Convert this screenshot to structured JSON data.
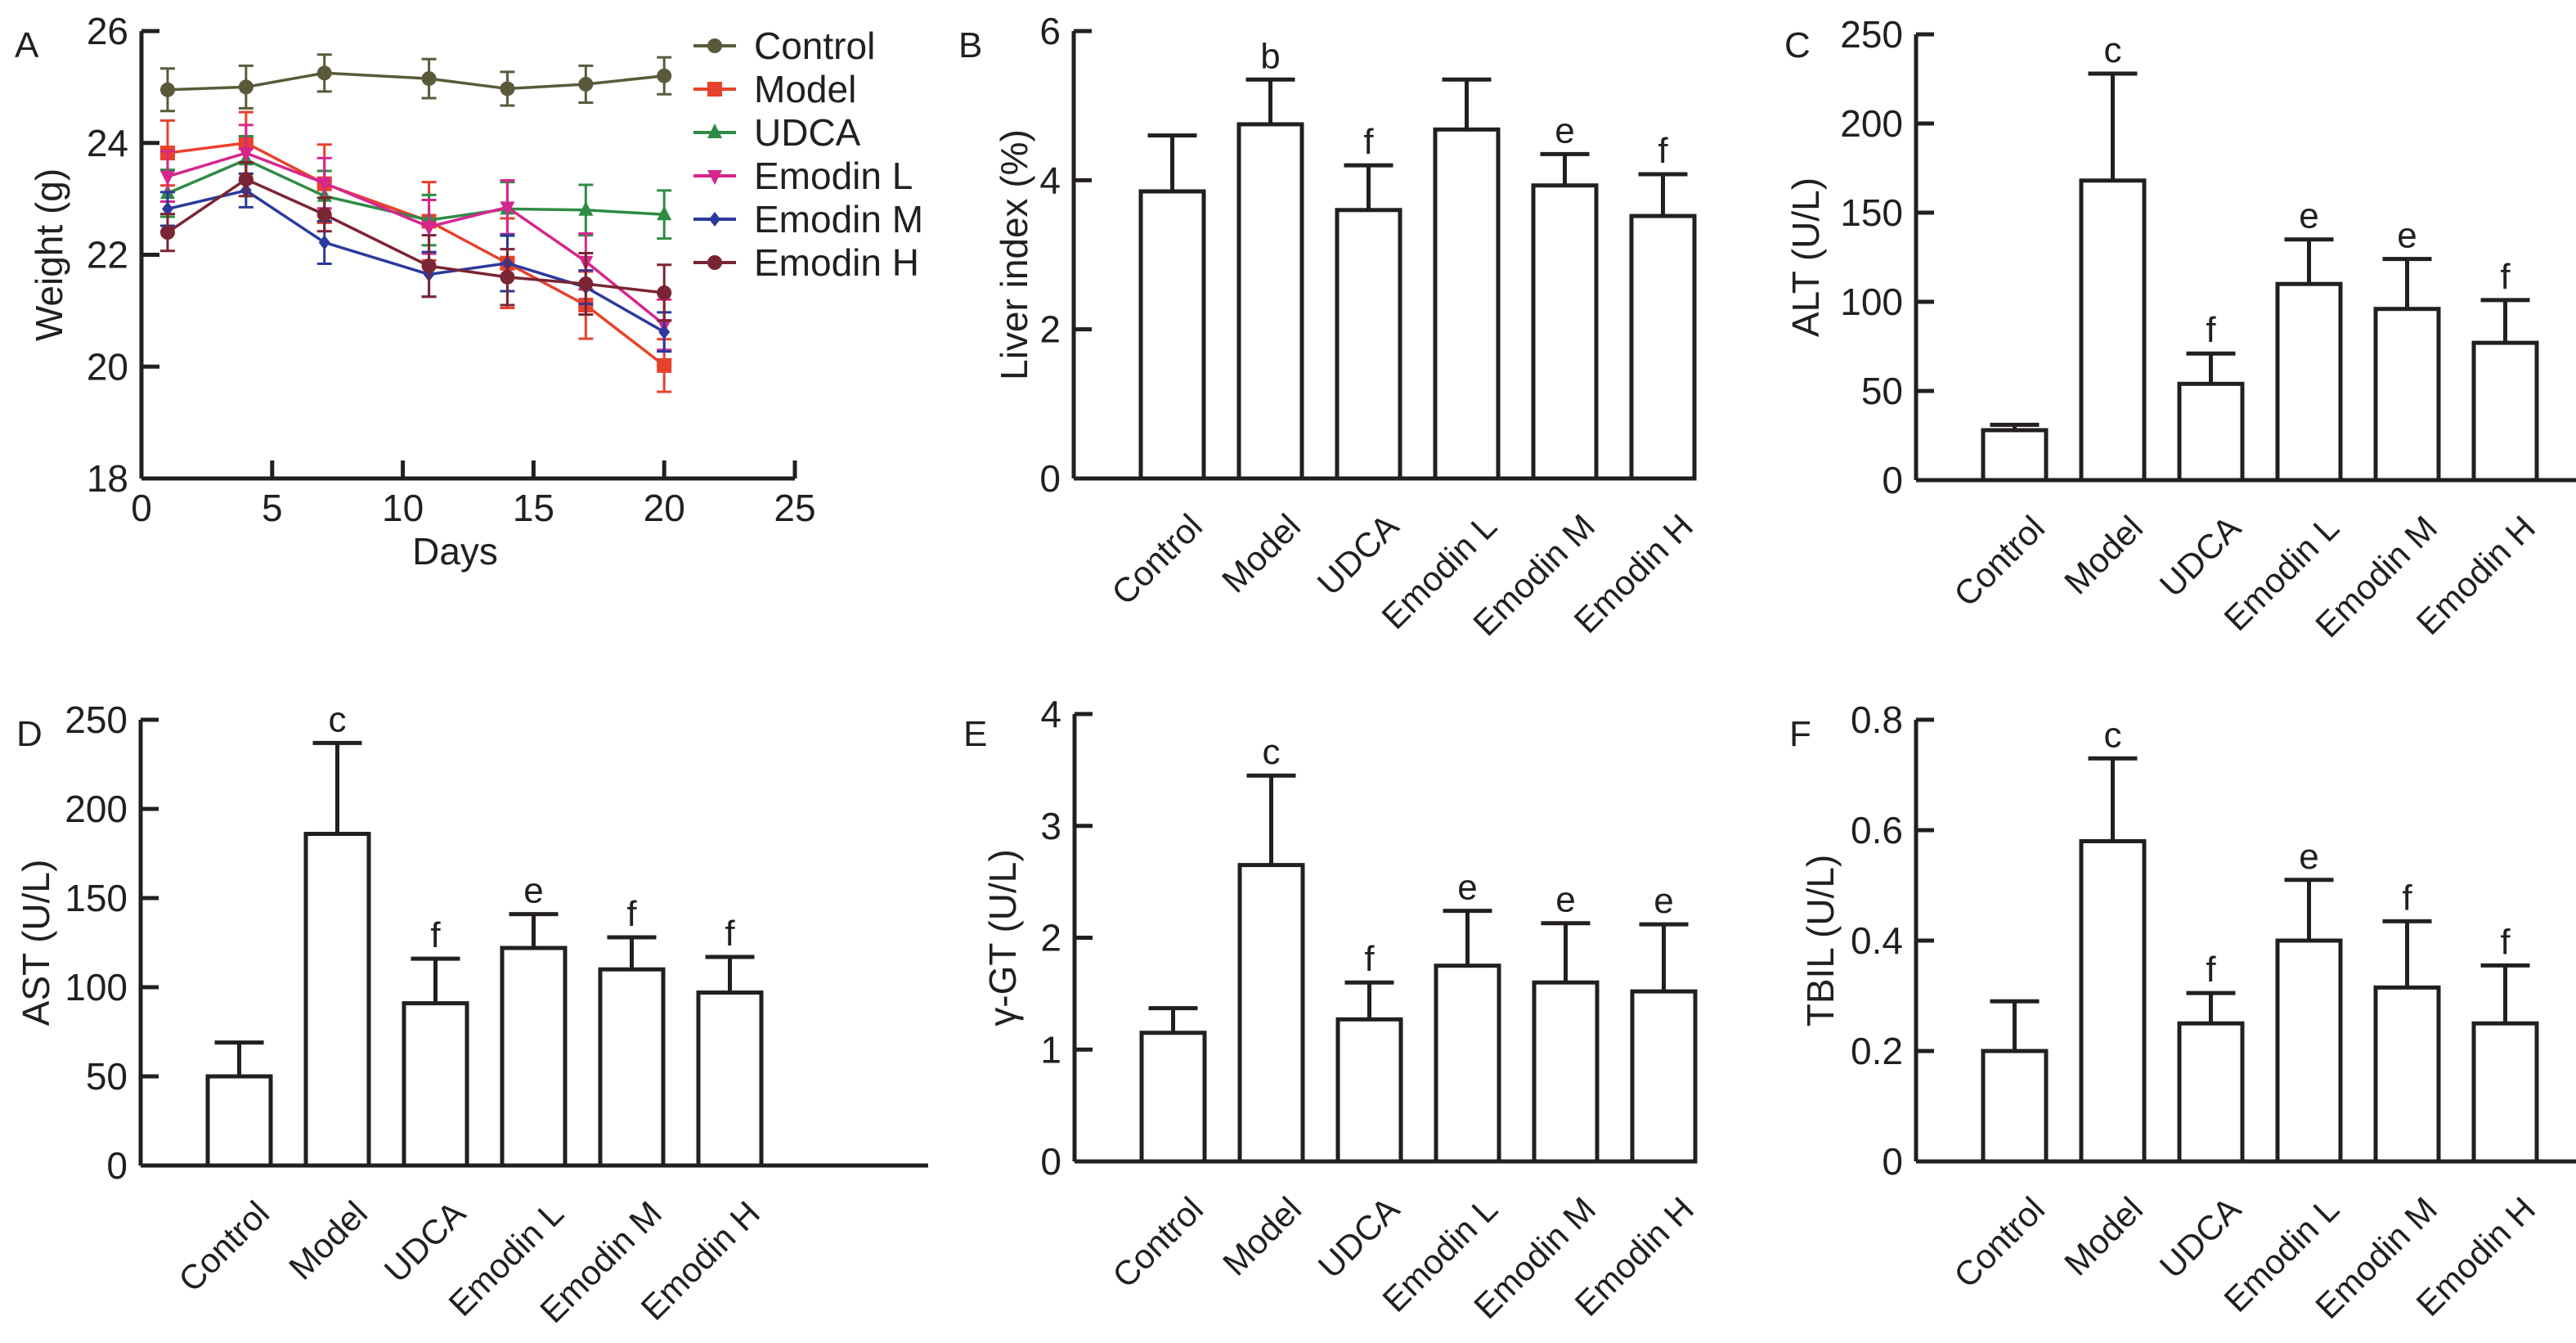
{
  "figure": {
    "panel_letters": [
      "A",
      "B",
      "C",
      "D",
      "E",
      "F"
    ]
  },
  "chart_data": [
    {
      "panel": "A",
      "type": "line",
      "title": "",
      "xlabel": "Days",
      "ylabel": "Weight (g)",
      "xlim": [
        0,
        25
      ],
      "ylim": [
        18,
        26
      ],
      "xticks": [
        0,
        5,
        10,
        15,
        20,
        25
      ],
      "yticks": [
        18,
        20,
        22,
        24,
        26
      ],
      "grid": false,
      "legend_position": "top-right",
      "x": [
        1,
        4,
        7,
        11,
        14,
        17,
        20
      ],
      "series": [
        {
          "name": "Control",
          "color": "#5a5a3a",
          "marker": "circle",
          "values": [
            24.95,
            25.0,
            25.25,
            25.15,
            24.97,
            25.05,
            25.2
          ],
          "errors": [
            0.38,
            0.38,
            0.33,
            0.35,
            0.3,
            0.33,
            0.33
          ]
        },
        {
          "name": "Model",
          "color": "#e8412b",
          "marker": "square",
          "values": [
            23.82,
            24.0,
            23.27,
            22.6,
            21.85,
            21.1,
            20.02
          ],
          "errors": [
            0.58,
            0.55,
            0.7,
            0.7,
            0.8,
            0.6,
            0.47
          ]
        },
        {
          "name": "UDCA",
          "color": "#2e8b45",
          "marker": "triangle-up",
          "values": [
            23.1,
            23.7,
            23.05,
            22.62,
            22.82,
            22.8,
            22.72
          ],
          "errors": [
            0.42,
            0.42,
            0.45,
            0.45,
            0.48,
            0.45,
            0.43
          ]
        },
        {
          "name": "Emodin L",
          "color": "#d6268e",
          "marker": "triangle-down",
          "values": [
            23.4,
            23.82,
            23.28,
            22.5,
            22.85,
            21.88,
            20.75
          ],
          "errors": [
            0.45,
            0.5,
            0.45,
            0.48,
            0.48,
            0.5,
            0.45
          ]
        },
        {
          "name": "Emodin M",
          "color": "#2b3a9c",
          "marker": "diamond",
          "values": [
            22.82,
            23.15,
            22.22,
            21.65,
            21.85,
            21.42,
            20.62
          ],
          "errors": [
            0.3,
            0.3,
            0.38,
            0.4,
            0.5,
            0.3,
            0.35
          ]
        },
        {
          "name": "Emodin H",
          "color": "#7a2533",
          "marker": "circle",
          "values": [
            22.4,
            23.35,
            22.72,
            21.8,
            21.6,
            21.48,
            21.32
          ],
          "errors": [
            0.33,
            0.3,
            0.3,
            0.55,
            0.5,
            0.55,
            0.5
          ]
        }
      ]
    },
    {
      "panel": "B",
      "type": "bar",
      "title": "",
      "xlabel": "",
      "ylabel": "Liver index (%)",
      "ylim": [
        0,
        6
      ],
      "yticks": [
        0,
        2,
        4,
        6
      ],
      "grid": false,
      "categories": [
        "Control",
        "Model",
        "UDCA",
        "Emodin L",
        "Emodin M",
        "Emodin H"
      ],
      "values": [
        3.85,
        4.75,
        3.6,
        4.68,
        3.93,
        3.52
      ],
      "error_upper": [
        4.6,
        5.35,
        4.2,
        5.35,
        4.35,
        4.08
      ],
      "annotations": [
        "",
        "b",
        "f",
        "",
        "e",
        "f"
      ]
    },
    {
      "panel": "C",
      "type": "bar",
      "title": "",
      "xlabel": "",
      "ylabel": "ALT (U/L)",
      "ylim": [
        0,
        250
      ],
      "yticks": [
        0,
        50,
        100,
        150,
        200,
        250
      ],
      "grid": false,
      "categories": [
        "Control",
        "Model",
        "UDCA",
        "Emodin L",
        "Emodin M",
        "Emodin H"
      ],
      "values": [
        28,
        168,
        54,
        110,
        96,
        77
      ],
      "error_upper": [
        31,
        228,
        71,
        135,
        124,
        101
      ],
      "annotations": [
        "",
        "c",
        "f",
        "e",
        "e",
        "f"
      ]
    },
    {
      "panel": "D",
      "type": "bar",
      "title": "",
      "xlabel": "",
      "ylabel": "AST (U/L)",
      "ylim": [
        0,
        250
      ],
      "yticks": [
        0,
        50,
        100,
        150,
        200,
        250
      ],
      "grid": false,
      "categories": [
        "Control",
        "Model",
        "UDCA",
        "Emodin L",
        "Emodin M",
        "Emodin H"
      ],
      "values": [
        50,
        186,
        91,
        122,
        110,
        97
      ],
      "error_upper": [
        69,
        237,
        116,
        141,
        128,
        117
      ],
      "annotations": [
        "",
        "c",
        "f",
        "e",
        "f",
        "f"
      ]
    },
    {
      "panel": "E",
      "type": "bar",
      "title": "",
      "xlabel": "",
      "ylabel": "γ-GT (U/L)",
      "ylim": [
        0,
        4
      ],
      "yticks": [
        0,
        1,
        2,
        3,
        4
      ],
      "grid": false,
      "categories": [
        "Control",
        "Model",
        "UDCA",
        "Emodin L",
        "Emodin M",
        "Emodin H"
      ],
      "values": [
        1.15,
        2.65,
        1.27,
        1.75,
        1.6,
        1.52
      ],
      "error_upper": [
        1.37,
        3.45,
        1.6,
        2.24,
        2.13,
        2.12
      ],
      "annotations": [
        "",
        "c",
        "f",
        "e",
        "e",
        "e"
      ]
    },
    {
      "panel": "F",
      "type": "bar",
      "title": "",
      "xlabel": "",
      "ylabel": "TBIL (U/L)",
      "ylim": [
        0,
        0.8
      ],
      "yticks": [
        0,
        0.2,
        0.4,
        0.6,
        0.8
      ],
      "grid": false,
      "categories": [
        "Control",
        "Model",
        "UDCA",
        "Emodin L",
        "Emodin M",
        "Emodin H"
      ],
      "values": [
        0.2,
        0.58,
        0.25,
        0.4,
        0.315,
        0.25
      ],
      "error_upper": [
        0.29,
        0.73,
        0.305,
        0.51,
        0.435,
        0.355
      ],
      "annotations": [
        "",
        "c",
        "f",
        "e",
        "f",
        "f"
      ]
    }
  ]
}
